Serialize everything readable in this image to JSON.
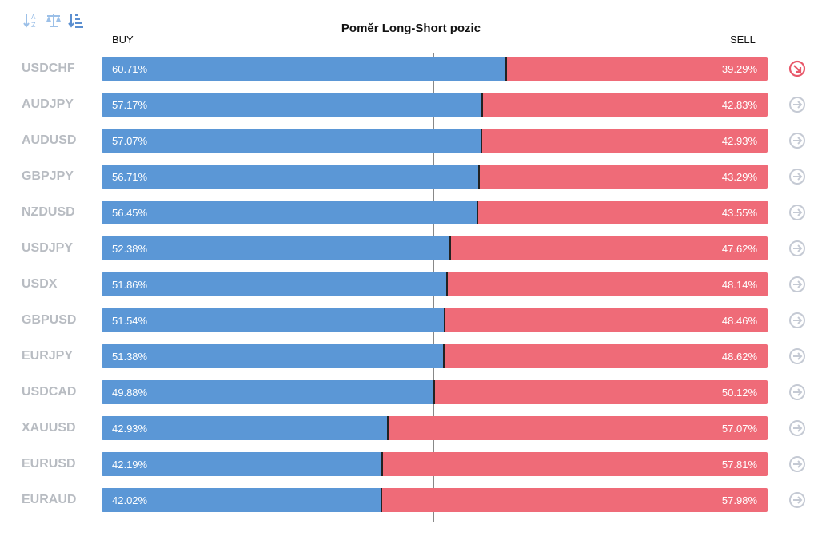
{
  "chart_data": {
    "type": "bar",
    "title": "Poměr Long-Short pozic",
    "buy_label": "BUY",
    "sell_label": "SELL",
    "series": [
      {
        "name": "BUY",
        "color": "#5b97d6"
      },
      {
        "name": "SELL",
        "color": "#ef6b78"
      }
    ],
    "rows": [
      {
        "pair": "USDCHF",
        "buy": 60.71,
        "sell": 39.29,
        "buy_text": "60.71%",
        "sell_text": "39.29%",
        "icon": "arrow-down-right-circle-icon",
        "highlight": true
      },
      {
        "pair": "AUDJPY",
        "buy": 57.17,
        "sell": 42.83,
        "buy_text": "57.17%",
        "sell_text": "42.83%",
        "icon": "arrow-right-circle-icon",
        "highlight": false
      },
      {
        "pair": "AUDUSD",
        "buy": 57.07,
        "sell": 42.93,
        "buy_text": "57.07%",
        "sell_text": "42.93%",
        "icon": "arrow-right-circle-icon",
        "highlight": false
      },
      {
        "pair": "GBPJPY",
        "buy": 56.71,
        "sell": 43.29,
        "buy_text": "56.71%",
        "sell_text": "43.29%",
        "icon": "arrow-right-circle-icon",
        "highlight": false
      },
      {
        "pair": "NZDUSD",
        "buy": 56.45,
        "sell": 43.55,
        "buy_text": "56.45%",
        "sell_text": "43.55%",
        "icon": "arrow-right-circle-icon",
        "highlight": false
      },
      {
        "pair": "USDJPY",
        "buy": 52.38,
        "sell": 47.62,
        "buy_text": "52.38%",
        "sell_text": "47.62%",
        "icon": "arrow-right-circle-icon",
        "highlight": false
      },
      {
        "pair": "USDX",
        "buy": 51.86,
        "sell": 48.14,
        "buy_text": "51.86%",
        "sell_text": "48.14%",
        "icon": "arrow-right-circle-icon",
        "highlight": false
      },
      {
        "pair": "GBPUSD",
        "buy": 51.54,
        "sell": 48.46,
        "buy_text": "51.54%",
        "sell_text": "48.46%",
        "icon": "arrow-right-circle-icon",
        "highlight": false
      },
      {
        "pair": "EURJPY",
        "buy": 51.38,
        "sell": 48.62,
        "buy_text": "51.38%",
        "sell_text": "48.62%",
        "icon": "arrow-right-circle-icon",
        "highlight": false
      },
      {
        "pair": "USDCAD",
        "buy": 49.88,
        "sell": 50.12,
        "buy_text": "49.88%",
        "sell_text": "50.12%",
        "icon": "arrow-right-circle-icon",
        "highlight": false
      },
      {
        "pair": "XAUUSD",
        "buy": 42.93,
        "sell": 57.07,
        "buy_text": "42.93%",
        "sell_text": "57.07%",
        "icon": "arrow-right-circle-icon",
        "highlight": false
      },
      {
        "pair": "EURUSD",
        "buy": 42.19,
        "sell": 57.81,
        "buy_text": "42.19%",
        "sell_text": "57.81%",
        "icon": "arrow-right-circle-icon",
        "highlight": false
      },
      {
        "pair": "EURAUD",
        "buy": 42.02,
        "sell": 57.98,
        "buy_text": "42.02%",
        "sell_text": "57.98%",
        "icon": "arrow-right-circle-icon",
        "highlight": false
      }
    ]
  },
  "toolbar": {
    "icons": [
      "sort-alphabetical-icon",
      "balance-scale-icon",
      "sort-by-value-icon"
    ],
    "icon_color": "#6fa3dc"
  },
  "colors": {
    "pair_text": "#b8bcc2",
    "row_icon": "#c5cad4",
    "row_icon_highlight": "#e8586a"
  }
}
